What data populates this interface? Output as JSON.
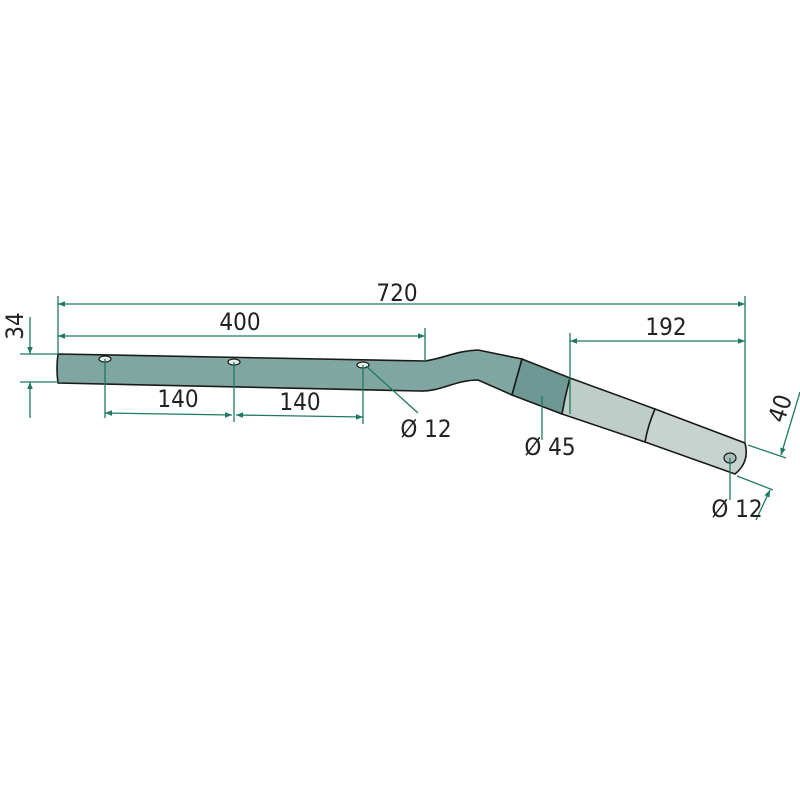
{
  "drawing": {
    "part": "bent tube with sleeve and pin hole",
    "colors": {
      "dimension": "#1f7a63",
      "tube": "#7fa6a0",
      "sleeve": "#6e9893",
      "light_section": "#bfcdc8",
      "outline": "#1a1a1a"
    },
    "dimensions": {
      "overall_length": "720",
      "straight_length": "400",
      "tube_height": "34",
      "hole_spacing_1": "140",
      "hole_spacing_2": "140",
      "hole_diameter": "Ø 12",
      "sleeve_diameter": "Ø 45",
      "end_length": "192",
      "end_width": "40",
      "end_hole_diameter": "Ø 12"
    }
  }
}
